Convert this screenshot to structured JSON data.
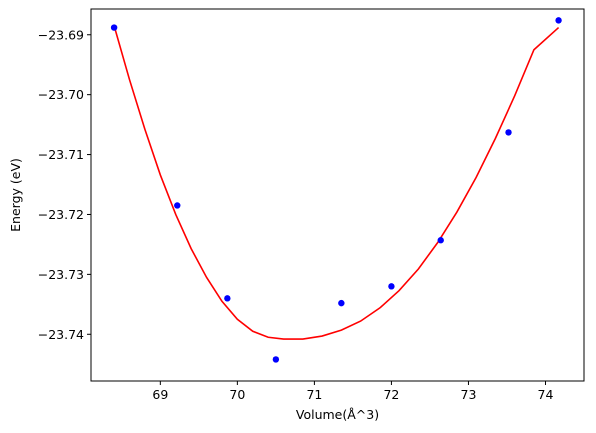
{
  "chart_data": {
    "type": "scatter",
    "title": "",
    "xlabel": "Volume(Å^3)",
    "ylabel": "Energy (eV)",
    "xlim": [
      68.1,
      74.5
    ],
    "ylim": [
      -23.7478,
      -23.6857
    ],
    "x_ticks": [
      {
        "value": 69,
        "label": "69"
      },
      {
        "value": 70,
        "label": "70"
      },
      {
        "value": 71,
        "label": "71"
      },
      {
        "value": 72,
        "label": "72"
      },
      {
        "value": 73,
        "label": "73"
      },
      {
        "value": 74,
        "label": "74"
      }
    ],
    "y_ticks": [
      {
        "value": -23.69,
        "label": "−23.69"
      },
      {
        "value": -23.7,
        "label": "−23.70"
      },
      {
        "value": -23.71,
        "label": "−23.71"
      },
      {
        "value": -23.72,
        "label": "−23.72"
      },
      {
        "value": -23.73,
        "label": "−23.73"
      },
      {
        "value": -23.74,
        "label": "−23.74"
      }
    ],
    "grid": false,
    "legend": "none",
    "series": [
      {
        "kind": "scatter",
        "color": "#0000ff",
        "points": [
          {
            "x": 68.4,
            "y": -23.6888
          },
          {
            "x": 69.22,
            "y": -23.7185
          },
          {
            "x": 69.87,
            "y": -23.734
          },
          {
            "x": 70.5,
            "y": -23.7442
          },
          {
            "x": 71.35,
            "y": -23.7348
          },
          {
            "x": 72.0,
            "y": -23.732
          },
          {
            "x": 72.64,
            "y": -23.7243
          },
          {
            "x": 73.52,
            "y": -23.7063
          },
          {
            "x": 74.17,
            "y": -23.6876
          }
        ]
      },
      {
        "kind": "line",
        "color": "#ff0000",
        "points": [
          {
            "x": 68.4,
            "y": -23.6885
          },
          {
            "x": 68.6,
            "y": -23.6975
          },
          {
            "x": 68.8,
            "y": -23.7058
          },
          {
            "x": 69.0,
            "y": -23.7134
          },
          {
            "x": 69.2,
            "y": -23.72
          },
          {
            "x": 69.4,
            "y": -23.7257
          },
          {
            "x": 69.6,
            "y": -23.7305
          },
          {
            "x": 69.8,
            "y": -23.7345
          },
          {
            "x": 70.0,
            "y": -23.7375
          },
          {
            "x": 70.2,
            "y": -23.7395
          },
          {
            "x": 70.4,
            "y": -23.7405
          },
          {
            "x": 70.6,
            "y": -23.7408
          },
          {
            "x": 70.85,
            "y": -23.7408
          },
          {
            "x": 71.1,
            "y": -23.7403
          },
          {
            "x": 71.35,
            "y": -23.7393
          },
          {
            "x": 71.6,
            "y": -23.7378
          },
          {
            "x": 71.85,
            "y": -23.7356
          },
          {
            "x": 72.1,
            "y": -23.7327
          },
          {
            "x": 72.35,
            "y": -23.7291
          },
          {
            "x": 72.6,
            "y": -23.7247
          },
          {
            "x": 72.85,
            "y": -23.7196
          },
          {
            "x": 73.1,
            "y": -23.7138
          },
          {
            "x": 73.35,
            "y": -23.7073
          },
          {
            "x": 73.6,
            "y": -23.7002
          },
          {
            "x": 73.85,
            "y": -23.6925
          },
          {
            "x": 74.17,
            "y": -23.6888
          }
        ]
      }
    ]
  }
}
